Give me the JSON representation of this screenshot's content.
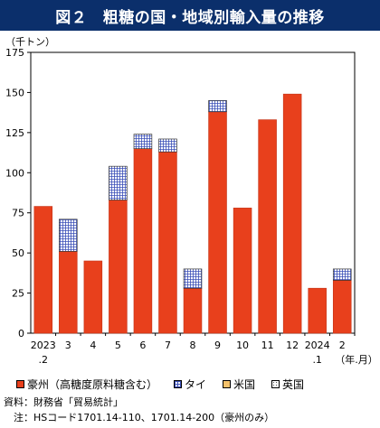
{
  "title": "図２　粗糖の国・地域別輸入量の推移",
  "unit_label": "（千トン）",
  "chart_data": {
    "type": "bar",
    "stacked": true,
    "categories": [
      {
        "top": "2023",
        "bottom": ".2"
      },
      {
        "top": "3",
        "bottom": ""
      },
      {
        "top": "4",
        "bottom": ""
      },
      {
        "top": "5",
        "bottom": ""
      },
      {
        "top": "6",
        "bottom": ""
      },
      {
        "top": "7",
        "bottom": ""
      },
      {
        "top": "8",
        "bottom": ""
      },
      {
        "top": "9",
        "bottom": ""
      },
      {
        "top": "10",
        "bottom": ""
      },
      {
        "top": "11",
        "bottom": ""
      },
      {
        "top": "12",
        "bottom": ""
      },
      {
        "top": "2024",
        "bottom": ".1"
      },
      {
        "top": "2",
        "bottom": ""
      }
    ],
    "x_unit_label": "（年.月）",
    "series": [
      {
        "name": "豪州（高糖度原料糖含む）",
        "color": "#e8401c",
        "pattern": "solid",
        "values": [
          79,
          51,
          45,
          83,
          115,
          113,
          28,
          138,
          78,
          133,
          149,
          28,
          33
        ]
      },
      {
        "name": "タイ",
        "color": "#3a4fb8",
        "pattern": "grid",
        "values": [
          0,
          20,
          0,
          21,
          9,
          8,
          12,
          7,
          0,
          0,
          0,
          0,
          7
        ]
      },
      {
        "name": "米国",
        "color": "#f5c26b",
        "pattern": "solid",
        "values": [
          0,
          0,
          0,
          0,
          0,
          0,
          0,
          0,
          0,
          0,
          0,
          0,
          0
        ]
      },
      {
        "name": "英国",
        "color": "#ffffff",
        "pattern": "dots",
        "values": [
          0,
          0,
          0,
          0,
          0,
          0,
          0,
          0,
          0,
          0,
          0,
          0,
          0
        ]
      }
    ],
    "ylim": [
      0,
      175
    ],
    "yticks": [
      0,
      25,
      50,
      75,
      100,
      125,
      150,
      175
    ],
    "grid": false
  },
  "notes": [
    {
      "label": "資料：",
      "text": "財務省「貿易統計」"
    },
    {
      "label": "　注：",
      "text": "HSコード1701.14-110、1701.14-200（豪州のみ）"
    }
  ]
}
